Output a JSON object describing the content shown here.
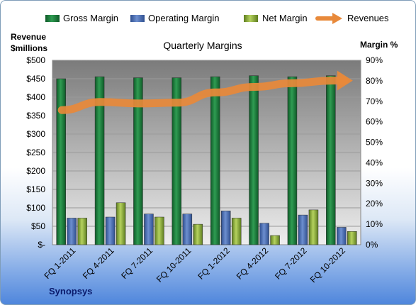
{
  "chart_data": {
    "type": "bar",
    "title": "Quarterly Margins",
    "company": "Synopsys",
    "left_axis_label_line1": "Revenue",
    "left_axis_label_line2": "$millions",
    "right_axis_label": "Margin %",
    "categories": [
      "FQ 1-2011",
      "FQ 4-2011",
      "FQ 7-2011",
      "FQ 10-2011",
      "FQ 1-2012",
      "FQ 4-2012",
      "FQ 7-2012",
      "FQ 10-2012"
    ],
    "left_ticks": [
      "$-",
      "$50",
      "$100",
      "$150",
      "$200",
      "$250",
      "$300",
      "$350",
      "$400",
      "$450",
      "$500"
    ],
    "right_ticks": [
      "0%",
      "10%",
      "20%",
      "30%",
      "40%",
      "50%",
      "60%",
      "70%",
      "80%",
      "90%"
    ],
    "left_ylim": [
      0,
      500
    ],
    "right_ylim": [
      0,
      90
    ],
    "series": [
      {
        "name": "Gross Margin",
        "axis": "right",
        "color": "#1e7d3c",
        "values": [
          81,
          82,
          81.5,
          81.5,
          82,
          82.5,
          82,
          82.5
        ]
      },
      {
        "name": "Operating Margin",
        "axis": "right",
        "color": "#4a6fb5",
        "values": [
          13,
          13.5,
          15,
          15,
          16.5,
          10.5,
          14.5,
          8.5
        ]
      },
      {
        "name": "Net Margin",
        "axis": "right",
        "color": "#8fb03a",
        "values": [
          13,
          20.5,
          13.5,
          10,
          13,
          4.5,
          17,
          6.5
        ]
      },
      {
        "name": "Revenues",
        "axis": "left",
        "type": "line",
        "color": "#e8893a",
        "values": [
          365,
          387,
          383,
          385,
          413,
          428,
          438,
          445
        ]
      }
    ],
    "grid": true,
    "legend_position": "top"
  }
}
